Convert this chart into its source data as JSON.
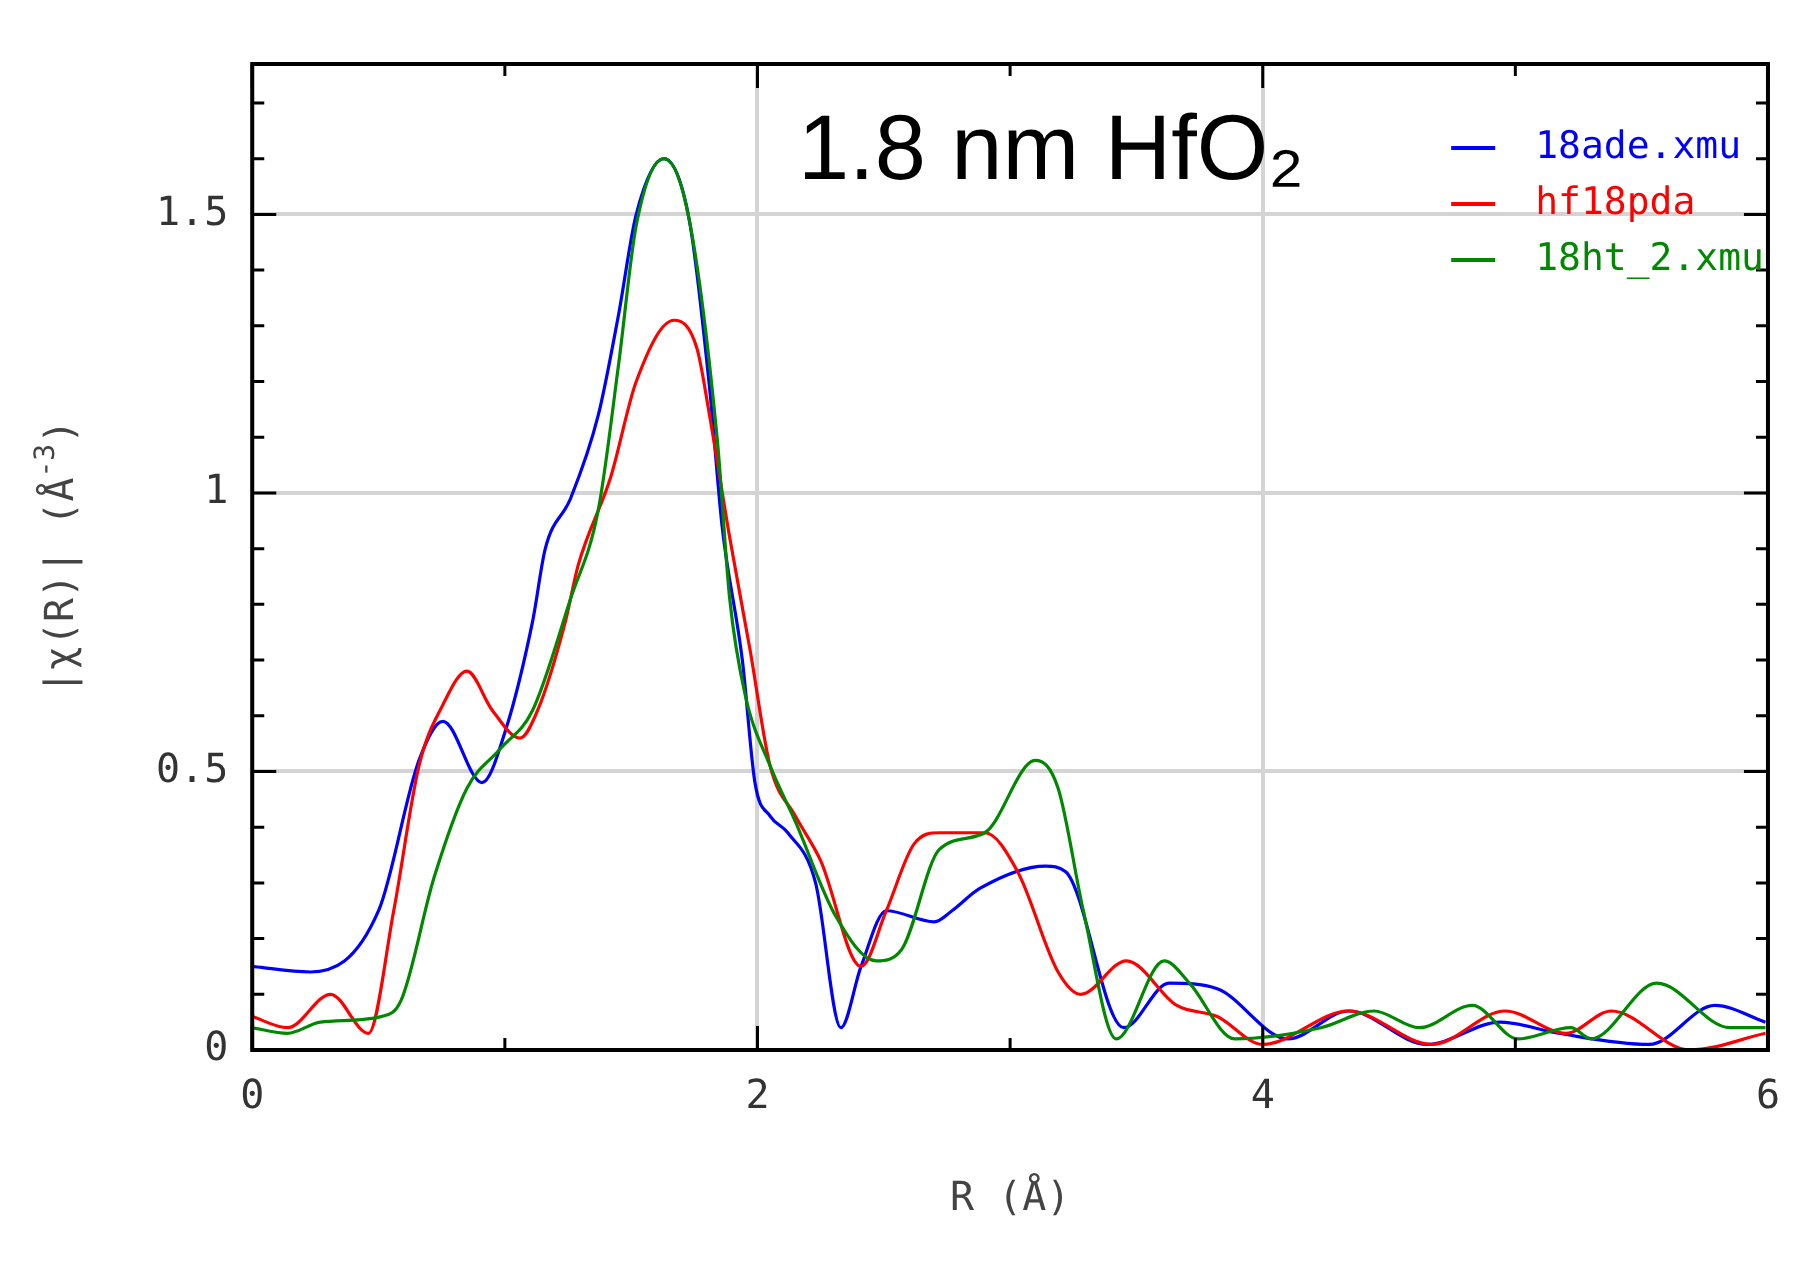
{
  "chart_data": {
    "type": "line",
    "xlabel": "R (Å)",
    "ylabel": "|χ(R)| (Å$^{-3}$)",
    "annotations": [
      "1.8 nm HfO₂"
    ],
    "xlim": [
      0,
      6
    ],
    "xticks": [
      0,
      {
        "value": 1,
        "label": null
      },
      2,
      {
        "value": 3,
        "label": null
      },
      4,
      {
        "value": 5,
        "label": null
      },
      6
    ],
    "ylim": [
      0,
      1.77
    ],
    "yticks": [
      0,
      {
        "value": 0.1,
        "label": null
      },
      {
        "value": 0.2,
        "label": null
      },
      {
        "value": 0.3,
        "label": null
      },
      {
        "value": 0.4,
        "label": null
      },
      0.5,
      {
        "value": 0.6,
        "label": null
      },
      {
        "value": 0.7,
        "label": null
      },
      {
        "value": 0.8,
        "label": null
      },
      {
        "value": 0.9,
        "label": null
      },
      1,
      {
        "value": 1.1,
        "label": null
      },
      {
        "value": 1.2,
        "label": null
      },
      {
        "value": 1.3,
        "label": null
      },
      {
        "value": 1.4,
        "label": null
      },
      1.5,
      {
        "value": 1.6,
        "label": null
      },
      {
        "value": 1.7,
        "label": null
      }
    ],
    "grid": true,
    "legend": "top right",
    "marker": "none",
    "line_style": "solid",
    "series": [
      {
        "name": "18ade.xmu",
        "color": "#0000ff",
        "x": [
          0,
          0.23,
          0.5,
          0.66,
          0.755,
          0.91,
          1.0,
          1.11,
          1.16,
          1.26,
          1.37,
          1.45,
          1.52,
          1.63,
          1.73,
          1.81,
          1.86,
          1.94,
          1.99,
          2.05,
          2.12,
          2.23,
          2.33,
          2.41,
          2.51,
          2.7,
          2.77,
          2.88,
          3.14,
          3.22,
          3.45,
          3.63,
          3.82,
          4.1,
          4.34,
          4.65,
          4.94,
          5.17,
          5.53,
          5.79,
          5.99
        ],
        "values": [
          0.15,
          0.14,
          0.25,
          0.52,
          0.59,
          0.48,
          0.57,
          0.77,
          0.9,
          0.99,
          1.14,
          1.32,
          1.5,
          1.6,
          1.49,
          1.19,
          0.94,
          0.7,
          0.48,
          0.42,
          0.39,
          0.3,
          0.04,
          0.15,
          0.25,
          0.23,
          0.25,
          0.29,
          0.33,
          0.32,
          0.04,
          0.12,
          0.11,
          0.02,
          0.07,
          0.01,
          0.05,
          0.03,
          0.01,
          0.08,
          0.05
        ]
      },
      {
        "name": "hf18pda",
        "color": "#ff0000",
        "x": [
          0,
          0.14,
          0.31,
          0.46,
          0.56,
          0.66,
          0.755,
          0.85,
          0.95,
          1.06,
          1.13,
          1.24,
          1.29,
          1.42,
          1.52,
          1.67,
          1.76,
          1.81,
          1.89,
          1.97,
          2.05,
          2.15,
          2.25,
          2.41,
          2.51,
          2.62,
          2.72,
          2.9,
          3.03,
          3.19,
          3.28,
          3.46,
          3.66,
          3.82,
          4.0,
          4.34,
          4.67,
          4.96,
          5.2,
          5.38,
          5.69,
          5.99
        ],
        "values": [
          0.06,
          0.04,
          0.1,
          0.03,
          0.25,
          0.51,
          0.62,
          0.68,
          0.61,
          0.56,
          0.61,
          0.77,
          0.87,
          1.03,
          1.2,
          1.31,
          1.26,
          1.14,
          0.92,
          0.72,
          0.51,
          0.42,
          0.34,
          0.15,
          0.25,
          0.37,
          0.39,
          0.39,
          0.32,
          0.14,
          0.1,
          0.16,
          0.08,
          0.06,
          0.01,
          0.07,
          0.01,
          0.07,
          0.03,
          0.07,
          0,
          0.03
        ]
      },
      {
        "name": "18ht_2.xmu",
        "color": "#008800",
        "x": [
          0,
          0.14,
          0.27,
          0.51,
          0.59,
          0.72,
          0.85,
          0.98,
          1.11,
          1.26,
          1.37,
          1.45,
          1.52,
          1.63,
          1.73,
          1.84,
          1.89,
          1.95,
          2.05,
          2.15,
          2.31,
          2.47,
          2.57,
          2.72,
          2.9,
          3.1,
          3.19,
          3.29,
          3.42,
          3.61,
          3.71,
          3.89,
          4.23,
          4.44,
          4.62,
          4.83,
          5.01,
          5.22,
          5.3,
          5.56,
          5.85,
          5.99
        ],
        "values": [
          0.04,
          0.03,
          0.05,
          0.06,
          0.09,
          0.31,
          0.47,
          0.54,
          0.61,
          0.81,
          0.97,
          1.23,
          1.48,
          1.6,
          1.49,
          1.1,
          0.81,
          0.64,
          0.51,
          0.41,
          0.24,
          0.16,
          0.18,
          0.36,
          0.39,
          0.52,
          0.47,
          0.25,
          0.02,
          0.16,
          0.12,
          0.02,
          0.04,
          0.07,
          0.04,
          0.08,
          0.02,
          0.04,
          0.02,
          0.12,
          0.04,
          0.04
        ]
      }
    ]
  }
}
